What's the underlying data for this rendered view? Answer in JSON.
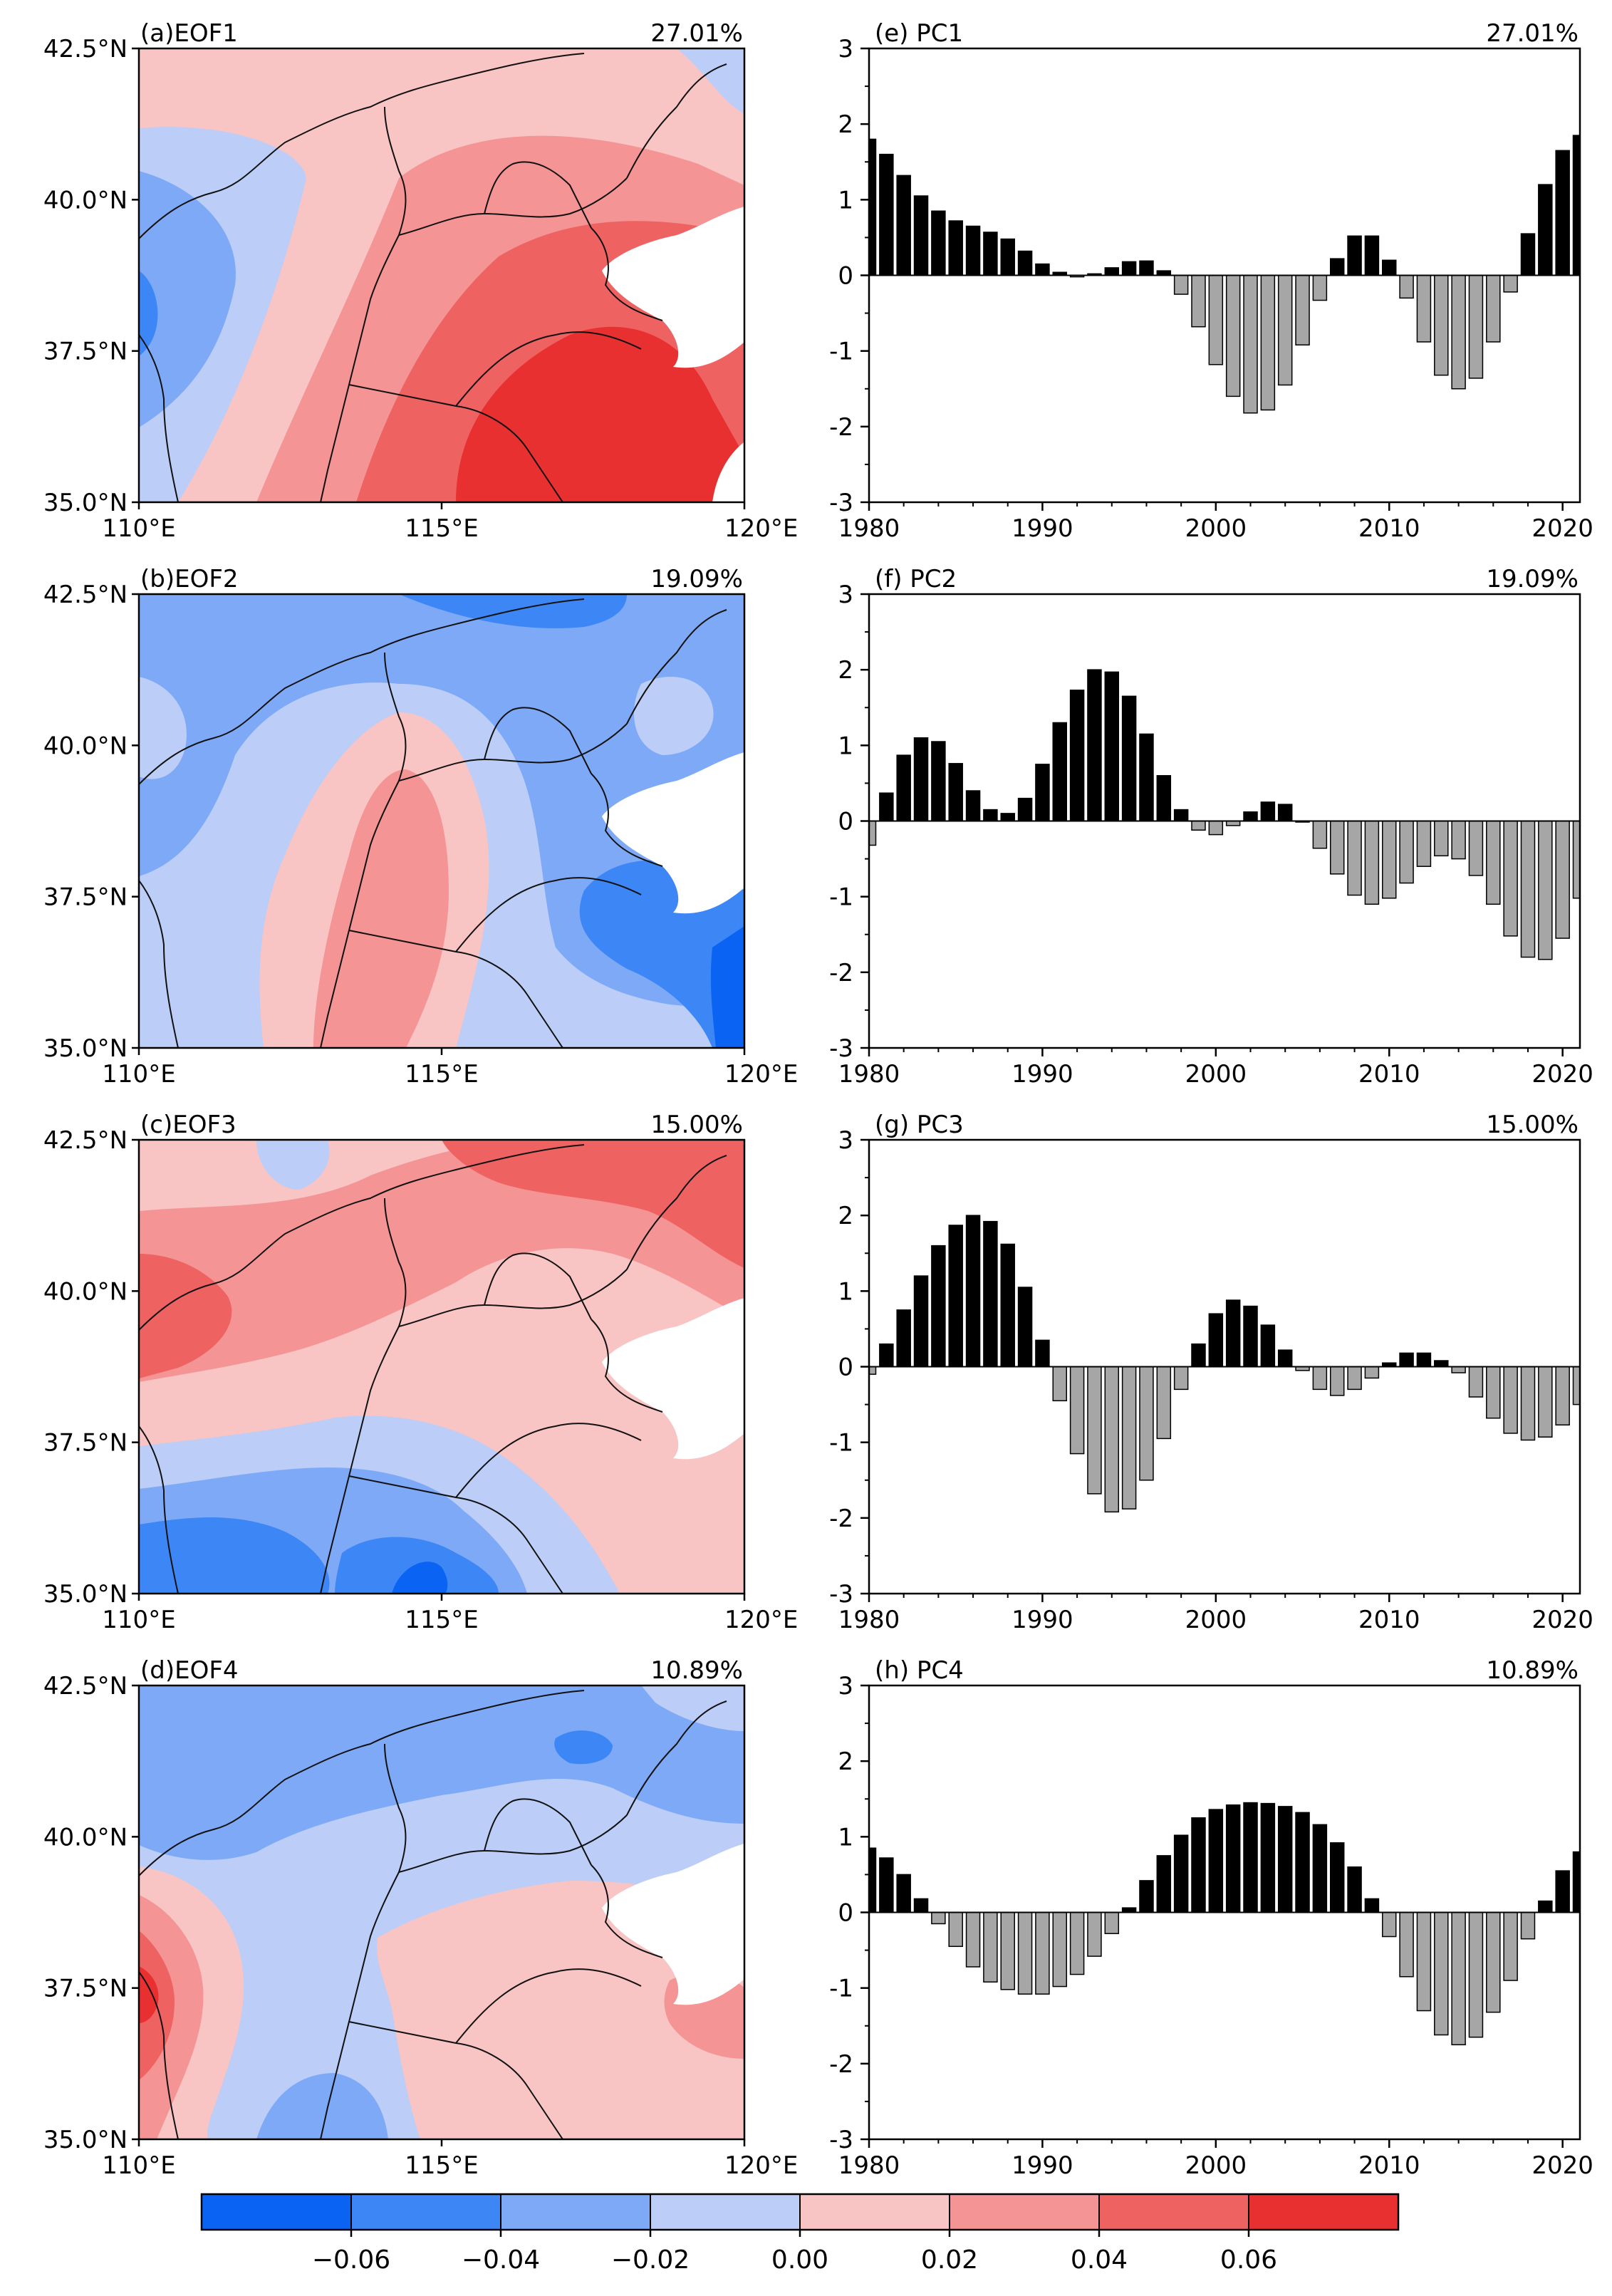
{
  "figure": {
    "map_panels": [
      {
        "label": "(a)EOF1",
        "pct": "27.01%"
      },
      {
        "label": "(b)EOF2",
        "pct": "19.09%"
      },
      {
        "label": "(c)EOF3",
        "pct": "15.00%"
      },
      {
        "label": "(d)EOF4",
        "pct": "10.89%"
      }
    ],
    "map_axes": {
      "lon_range": [
        110,
        120
      ],
      "lat_range": [
        35,
        42.5
      ],
      "x_ticks": [
        {
          "v": 110,
          "t": "110°E"
        },
        {
          "v": 115,
          "t": "115°E"
        },
        {
          "v": 120,
          "t": "120°E"
        }
      ],
      "y_ticks": [
        {
          "v": 35,
          "t": "35.0°N"
        },
        {
          "v": 37.5,
          "t": "37.5°N"
        },
        {
          "v": 40,
          "t": "40.0°N"
        },
        {
          "v": 42.5,
          "t": "42.5°N"
        }
      ]
    },
    "colorbar": {
      "colors": [
        "#0a63f2",
        "#3d86f5",
        "#7ea9f7",
        "#bccdf8",
        "#f9c4c4",
        "#f49494",
        "#ef6262",
        "#e83030"
      ],
      "ticks": [
        "−0.06",
        "−0.04",
        "−0.02",
        "0.00",
        "0.02",
        "0.04",
        "0.06"
      ]
    },
    "colors": {
      "positive": "#000000",
      "negative": "#a6a6a6"
    }
  },
  "chart_data": [
    {
      "type": "bar",
      "panel_label": "(e) PC1",
      "pct_label": "27.01%",
      "x": [
        1980,
        1981,
        1982,
        1983,
        1984,
        1985,
        1986,
        1987,
        1988,
        1989,
        1990,
        1991,
        1992,
        1993,
        1994,
        1995,
        1996,
        1997,
        1998,
        1999,
        2000,
        2001,
        2002,
        2003,
        2004,
        2005,
        2006,
        2007,
        2008,
        2009,
        2010,
        2011,
        2012,
        2013,
        2014,
        2015,
        2016,
        2017,
        2018,
        2019,
        2020,
        2021
      ],
      "values": [
        1.8,
        1.6,
        1.32,
        1.05,
        0.85,
        0.72,
        0.65,
        0.57,
        0.48,
        0.32,
        0.15,
        0.04,
        -0.02,
        0.02,
        0.1,
        0.18,
        0.19,
        0.06,
        -0.25,
        -0.68,
        -1.18,
        -1.6,
        -1.82,
        -1.78,
        -1.45,
        -0.92,
        -0.33,
        0.22,
        0.52,
        0.52,
        0.2,
        -0.3,
        -0.88,
        -1.32,
        -1.5,
        -1.36,
        -0.88,
        -0.22,
        0.55,
        1.2,
        1.65,
        1.85
      ],
      "xlim": [
        1980,
        2021
      ],
      "ylim": [
        -3,
        3
      ],
      "xticks": [
        "1980",
        "1990",
        "2000",
        "2010",
        "2020"
      ],
      "yticks": [
        "-3",
        "-2",
        "-1",
        "0",
        "1",
        "2",
        "3"
      ]
    },
    {
      "type": "bar",
      "panel_label": "(f) PC2",
      "pct_label": "19.09%",
      "x": [
        1980,
        1981,
        1982,
        1983,
        1984,
        1985,
        1986,
        1987,
        1988,
        1989,
        1990,
        1991,
        1992,
        1993,
        1994,
        1995,
        1996,
        1997,
        1998,
        1999,
        2000,
        2001,
        2002,
        2003,
        2004,
        2005,
        2006,
        2007,
        2008,
        2009,
        2010,
        2011,
        2012,
        2013,
        2014,
        2015,
        2016,
        2017,
        2018,
        2019,
        2020,
        2021
      ],
      "values": [
        -0.32,
        0.37,
        0.87,
        1.1,
        1.05,
        0.76,
        0.4,
        0.15,
        0.1,
        0.3,
        0.75,
        1.3,
        1.73,
        2.0,
        1.97,
        1.65,
        1.15,
        0.6,
        0.15,
        -0.12,
        -0.18,
        -0.06,
        0.12,
        0.25,
        0.22,
        0.0,
        -0.36,
        -0.7,
        -0.98,
        -1.1,
        -1.02,
        -0.82,
        -0.6,
        -0.46,
        -0.5,
        -0.72,
        -1.1,
        -1.52,
        -1.8,
        -1.83,
        -1.55,
        -1.02
      ],
      "xlim": [
        1980,
        2021
      ],
      "ylim": [
        -3,
        3
      ],
      "xticks": [
        "1980",
        "1990",
        "2000",
        "2010",
        "2020"
      ],
      "yticks": [
        "-3",
        "-2",
        "-1",
        "0",
        "1",
        "2",
        "3"
      ]
    },
    {
      "type": "bar",
      "panel_label": "(g) PC3",
      "pct_label": "15.00%",
      "x": [
        1980,
        1981,
        1982,
        1983,
        1984,
        1985,
        1986,
        1987,
        1988,
        1989,
        1990,
        1991,
        1992,
        1993,
        1994,
        1995,
        1996,
        1997,
        1998,
        1999,
        2000,
        2001,
        2002,
        2003,
        2004,
        2005,
        2006,
        2007,
        2008,
        2009,
        2010,
        2011,
        2012,
        2013,
        2014,
        2015,
        2016,
        2017,
        2018,
        2019,
        2020,
        2021
      ],
      "values": [
        -0.1,
        0.3,
        0.75,
        1.2,
        1.6,
        1.87,
        2.0,
        1.92,
        1.62,
        1.05,
        0.35,
        -0.45,
        -1.15,
        -1.68,
        -1.92,
        -1.88,
        -1.5,
        -0.95,
        -0.3,
        0.3,
        0.7,
        0.88,
        0.8,
        0.55,
        0.22,
        -0.05,
        -0.3,
        -0.38,
        -0.3,
        -0.15,
        0.05,
        0.18,
        0.18,
        0.08,
        -0.08,
        -0.4,
        -0.68,
        -0.88,
        -0.97,
        -0.93,
        -0.77,
        -0.5
      ],
      "xlim": [
        1980,
        2021
      ],
      "ylim": [
        -3,
        3
      ],
      "xticks": [
        "1980",
        "1990",
        "2000",
        "2010",
        "2020"
      ],
      "yticks": [
        "-3",
        "-2",
        "-1",
        "0",
        "1",
        "2",
        "3"
      ]
    },
    {
      "type": "bar",
      "panel_label": "(h) PC4",
      "pct_label": "10.89%",
      "x": [
        1980,
        1981,
        1982,
        1983,
        1984,
        1985,
        1986,
        1987,
        1988,
        1989,
        1990,
        1991,
        1992,
        1993,
        1994,
        1995,
        1996,
        1997,
        1998,
        1999,
        2000,
        2001,
        2002,
        2003,
        2004,
        2005,
        2006,
        2007,
        2008,
        2009,
        2010,
        2011,
        2012,
        2013,
        2014,
        2015,
        2016,
        2017,
        2018,
        2019,
        2020,
        2021
      ],
      "values": [
        0.85,
        0.72,
        0.5,
        0.18,
        -0.15,
        -0.45,
        -0.72,
        -0.92,
        -1.02,
        -1.08,
        -1.08,
        -0.98,
        -0.82,
        -0.58,
        -0.28,
        0.06,
        0.42,
        0.75,
        1.02,
        1.25,
        1.36,
        1.42,
        1.45,
        1.44,
        1.4,
        1.32,
        1.16,
        0.92,
        0.6,
        0.18,
        -0.32,
        -0.85,
        -1.3,
        -1.62,
        -1.75,
        -1.65,
        -1.32,
        -0.9,
        -0.35,
        0.15,
        0.55,
        0.8
      ],
      "xlim": [
        1980,
        2021
      ],
      "ylim": [
        -3,
        3
      ],
      "xticks": [
        "1980",
        "1990",
        "2000",
        "2010",
        "2020"
      ],
      "yticks": [
        "-3",
        "-2",
        "-1",
        "0",
        "1",
        "2",
        "3"
      ]
    }
  ]
}
